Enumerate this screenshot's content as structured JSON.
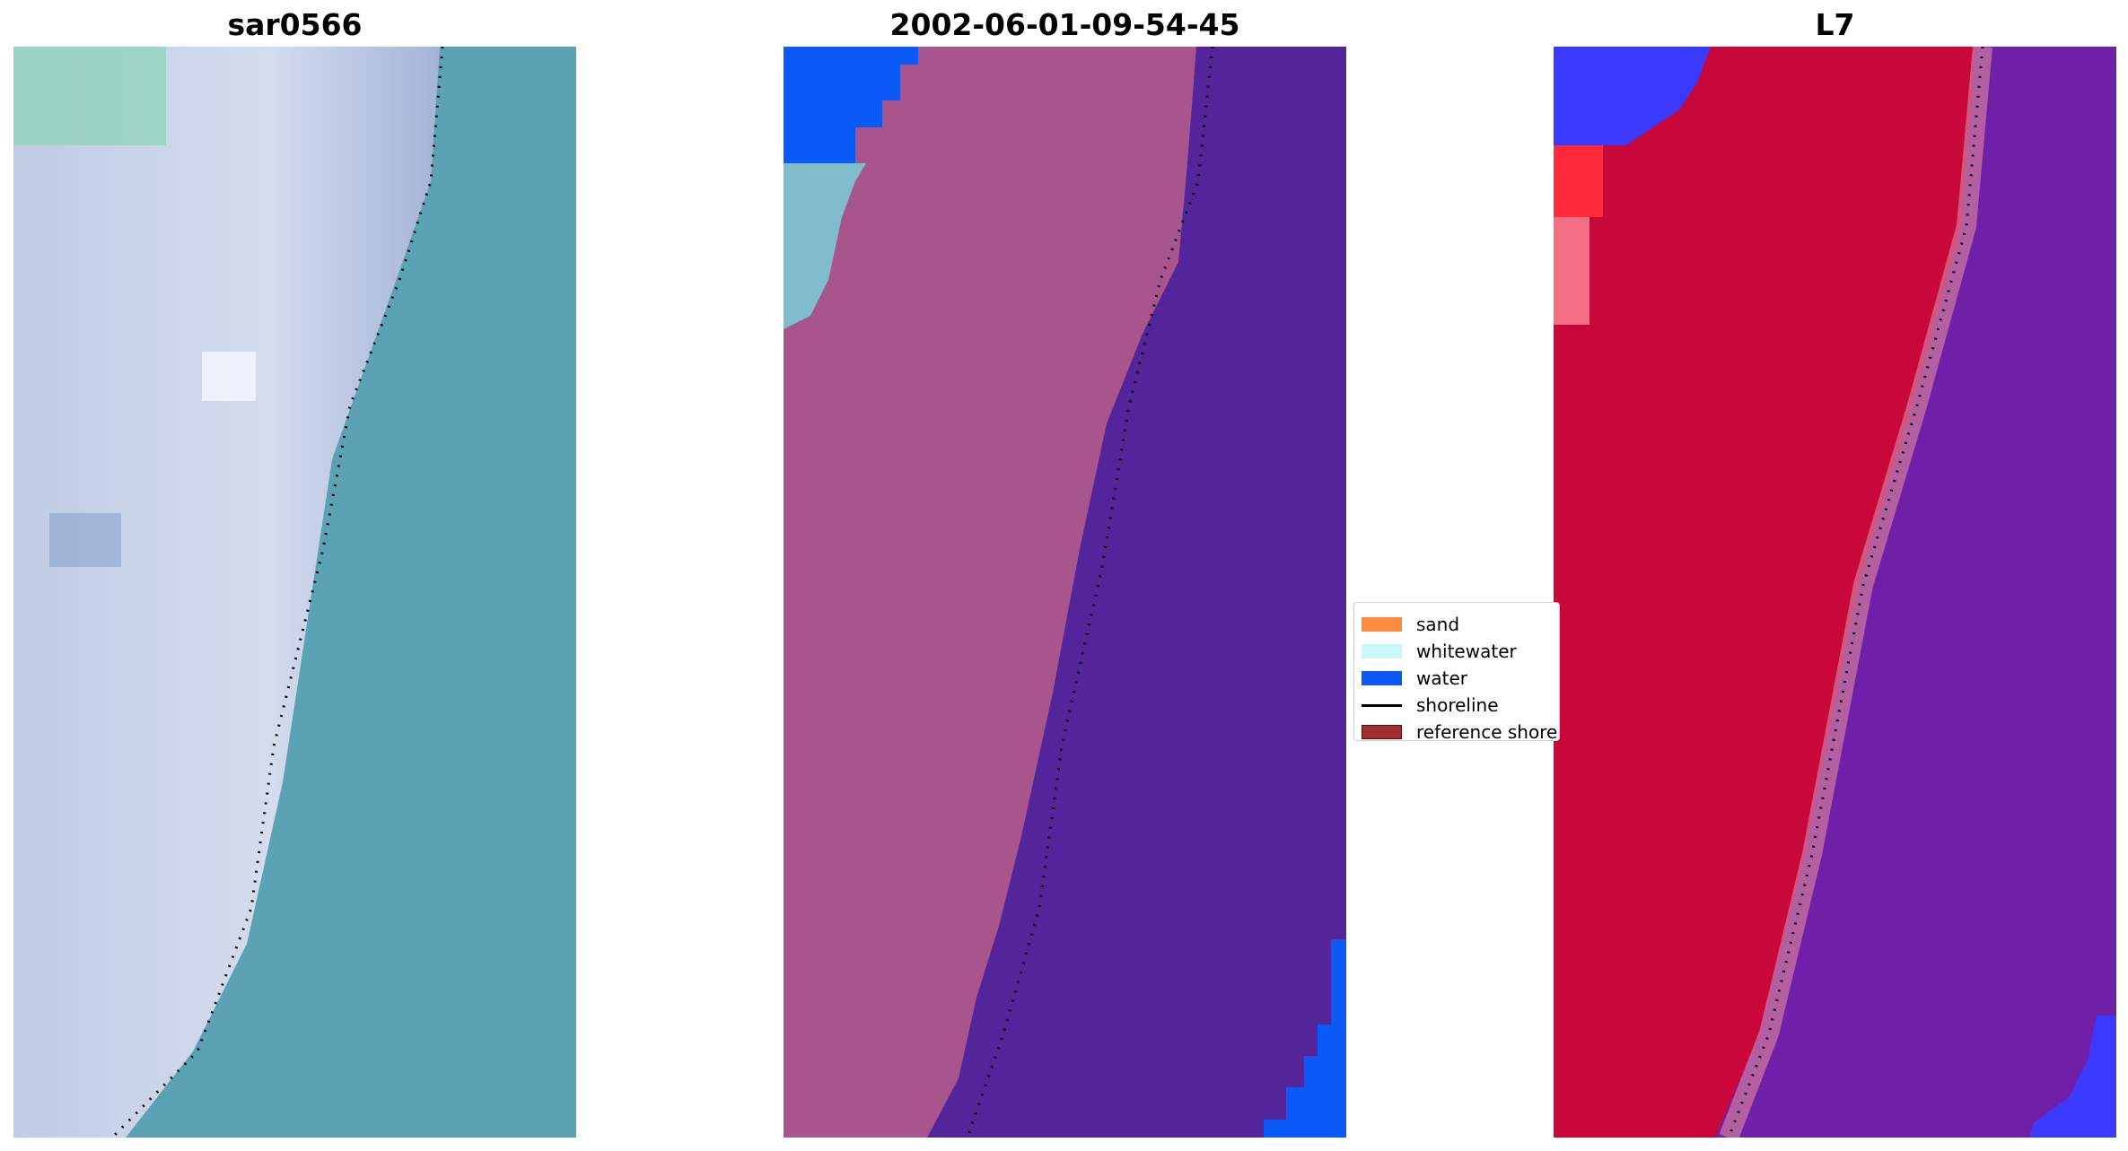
{
  "panels": [
    {
      "title": "sar0566"
    },
    {
      "title": "2002-06-01-09-54-45"
    },
    {
      "title": "L7"
    }
  ],
  "legend": {
    "items": [
      {
        "label": "sand",
        "type": "patch",
        "color": "#ff8c3c"
      },
      {
        "label": "whitewater",
        "type": "patch",
        "color": "#c8f8f8"
      },
      {
        "label": "water",
        "type": "patch",
        "color": "#0a5af8"
      },
      {
        "label": "shoreline",
        "type": "line",
        "color": "#000000"
      },
      {
        "label": "reference shoreline",
        "type": "patch",
        "color": "#a03030"
      }
    ]
  },
  "colors": {
    "rgb_land": "#b8c4e0",
    "rgb_sea": "#5aa2b4",
    "class_land": "#a8558e",
    "class_sea": "#54259a",
    "class_water": "#0a5af8",
    "class_whitewater": "#80bccc",
    "mndwi_land": "#c8083a",
    "mndwi_sea": "#7020a8",
    "mndwi_blue": "#3a3aff",
    "shoreline": "#000000"
  }
}
